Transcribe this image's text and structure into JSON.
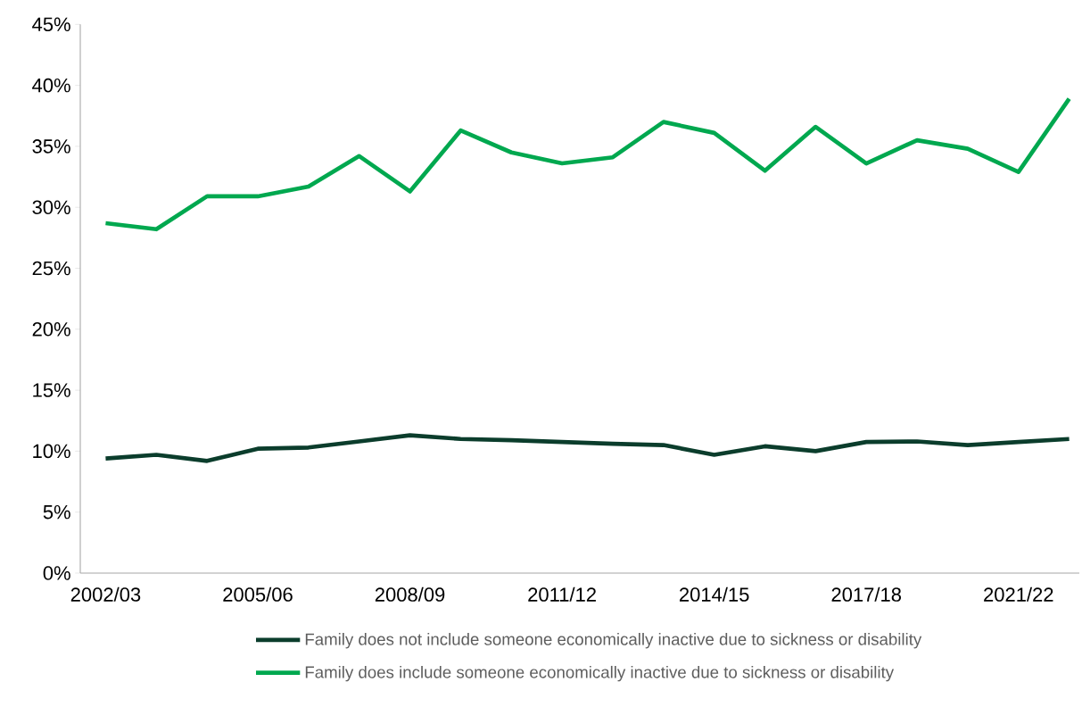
{
  "chart_data": {
    "type": "line",
    "categories": [
      "2002/03",
      null,
      null,
      "2005/06",
      null,
      null,
      "2008/09",
      null,
      null,
      "2011/12",
      null,
      null,
      "2014/15",
      null,
      null,
      "2017/18",
      null,
      null,
      "2021/22",
      null
    ],
    "series": [
      {
        "name": "Family does not include someone economically inactive due to sickness or disability",
        "color": "#0b3d2c",
        "values": [
          9.4,
          9.7,
          9.2,
          10.2,
          10.3,
          10.8,
          11.3,
          11.0,
          10.9,
          10.75,
          10.6,
          10.5,
          9.7,
          10.4,
          10.0,
          10.75,
          10.8,
          10.5,
          10.75,
          11.0
        ]
      },
      {
        "name": "Family does include someone economically inactive due to sickness or disability",
        "color": "#00a84f",
        "values": [
          28.7,
          28.2,
          30.9,
          30.9,
          31.7,
          34.2,
          31.3,
          36.3,
          34.5,
          33.6,
          34.1,
          37.0,
          36.1,
          33.0,
          36.6,
          33.6,
          35.5,
          34.8,
          32.9,
          38.9
        ]
      }
    ],
    "ylim": [
      0,
      45
    ],
    "yticks": [
      {
        "value": 0,
        "label": "0%"
      },
      {
        "value": 5,
        "label": "5%"
      },
      {
        "value": 10,
        "label": "10%"
      },
      {
        "value": 15,
        "label": "15%"
      },
      {
        "value": 20,
        "label": "20%"
      },
      {
        "value": 25,
        "label": "25%"
      },
      {
        "value": 30,
        "label": "30%"
      },
      {
        "value": 35,
        "label": "35%"
      },
      {
        "value": 40,
        "label": "40%"
      },
      {
        "value": 45,
        "label": "45%"
      }
    ],
    "legend": "bottom",
    "marker": "none",
    "line_style": "solid"
  }
}
